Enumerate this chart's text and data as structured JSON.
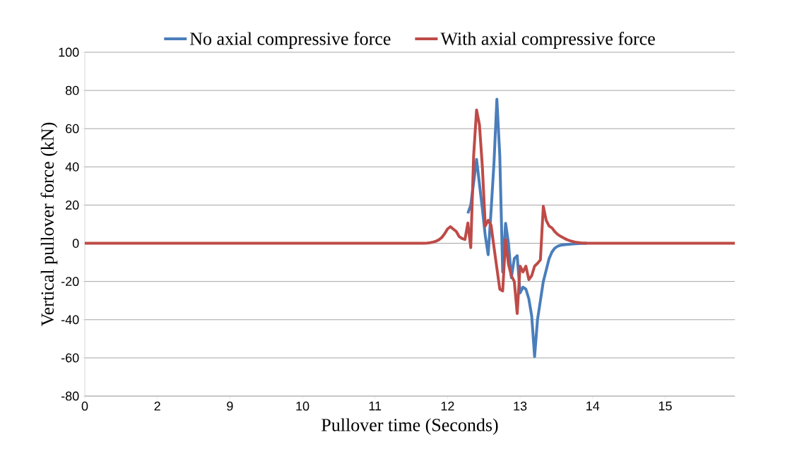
{
  "chart_data": {
    "type": "line",
    "xlabel": "Pullover time (Seconds)",
    "ylabel": "Vertical pullover force (kN)",
    "categories": [
      "0",
      null,
      null,
      null,
      null,
      null,
      null,
      null,
      null,
      null,
      null,
      null,
      null,
      null,
      null,
      null,
      null,
      null,
      null,
      null,
      null,
      null,
      null,
      null,
      null,
      "2",
      null,
      null,
      null,
      null,
      null,
      null,
      null,
      null,
      null,
      null,
      null,
      null,
      null,
      null,
      null,
      null,
      null,
      null,
      null,
      null,
      null,
      null,
      null,
      null,
      "9",
      null,
      null,
      null,
      null,
      null,
      null,
      null,
      null,
      null,
      null,
      null,
      null,
      null,
      null,
      null,
      null,
      null,
      null,
      null,
      null,
      null,
      null,
      null,
      null,
      "10",
      null,
      null,
      null,
      null,
      null,
      null,
      null,
      null,
      null,
      null,
      null,
      null,
      null,
      null,
      null,
      null,
      null,
      null,
      null,
      null,
      null,
      null,
      null,
      null,
      "11",
      null,
      null,
      null,
      null,
      null,
      null,
      null,
      null,
      null,
      null,
      null,
      null,
      null,
      null,
      null,
      null,
      null,
      null,
      null,
      null,
      null,
      null,
      null,
      null,
      "12",
      null,
      null,
      null,
      null,
      null,
      null,
      null,
      null,
      null,
      null,
      null,
      null,
      null,
      null,
      null,
      null,
      null,
      null,
      null,
      null,
      null,
      null,
      null,
      null,
      "13",
      null,
      null,
      null,
      null,
      null,
      null,
      null,
      null,
      null,
      null,
      null,
      null,
      null,
      null,
      null,
      null,
      null,
      null,
      null,
      null,
      null,
      null,
      null,
      null,
      "14",
      null,
      null,
      null,
      null,
      null,
      null,
      null,
      null,
      null,
      null,
      null,
      null,
      null,
      null,
      null,
      null,
      null,
      null,
      null,
      null,
      null,
      null,
      null,
      null,
      "15",
      null,
      null,
      null,
      null,
      null,
      null,
      null,
      null,
      null,
      null,
      null,
      null,
      null,
      null,
      null,
      null,
      null,
      null,
      null,
      null,
      null,
      null,
      null,
      null
    ],
    "ylim": [
      -80,
      100
    ],
    "yticks": [
      -80,
      -60,
      -40,
      -20,
      0,
      20,
      40,
      60,
      80,
      100
    ],
    "grid": "y",
    "legend": "top",
    "marker": "none",
    "line_style": "solid",
    "series": [
      {
        "name": "No axial compressive force",
        "color": "#4a7ebb",
        "values": [
          null,
          null,
          null,
          null,
          null,
          null,
          null,
          null,
          null,
          null,
          null,
          null,
          null,
          null,
          null,
          null,
          null,
          null,
          null,
          null,
          null,
          null,
          null,
          null,
          null,
          null,
          null,
          null,
          null,
          null,
          null,
          null,
          null,
          null,
          null,
          null,
          null,
          null,
          null,
          null,
          null,
          null,
          null,
          null,
          null,
          null,
          null,
          null,
          null,
          null,
          null,
          null,
          null,
          null,
          null,
          null,
          null,
          null,
          null,
          null,
          null,
          null,
          null,
          null,
          null,
          null,
          null,
          null,
          null,
          null,
          null,
          null,
          null,
          null,
          null,
          null,
          null,
          null,
          null,
          null,
          null,
          null,
          null,
          null,
          null,
          null,
          null,
          null,
          null,
          null,
          null,
          null,
          null,
          null,
          null,
          null,
          null,
          null,
          null,
          null,
          null,
          null,
          null,
          null,
          null,
          null,
          null,
          null,
          null,
          null,
          null,
          null,
          null,
          null,
          null,
          null,
          null,
          null,
          null,
          null,
          null,
          null,
          null,
          null,
          null,
          null,
          null,
          null,
          null,
          null,
          null,
          null,
          15.7,
          20,
          31.8,
          43.9,
          31,
          18,
          4,
          -6,
          17,
          42,
          75.4,
          46,
          -15,
          10.5,
          0,
          -18,
          -8,
          -6.5,
          -26,
          -23,
          -24,
          -29,
          -38,
          -59.3,
          -40,
          -30,
          -20,
          -14,
          -8,
          -4.5,
          -2.5,
          -1.5,
          -1,
          -0.8,
          -0.6,
          -0.5,
          -0.4,
          -0.3,
          -0.2,
          -0.1,
          -0.1,
          0,
          null,
          null,
          null,
          null,
          null,
          null,
          null,
          null,
          null,
          null,
          null,
          null,
          null,
          null,
          null,
          null,
          null,
          null,
          null,
          null,
          null,
          null,
          null,
          null,
          null,
          null,
          null,
          null,
          null,
          null,
          null,
          null,
          null,
          null,
          null,
          null,
          null,
          null,
          null,
          null,
          null,
          null,
          null,
          null,
          null,
          null,
          null,
          null,
          null,
          null,
          null
        ]
      },
      {
        "name": "With axial compressive force",
        "color": "#be4b48",
        "values": [
          0,
          0,
          0,
          0,
          0,
          0,
          0,
          0,
          0,
          0,
          0,
          0,
          0,
          0,
          0,
          0,
          0,
          0,
          0,
          0,
          0,
          0,
          0,
          0,
          0,
          0,
          0,
          0,
          0,
          0,
          0,
          0,
          0,
          0,
          0,
          0,
          0,
          0,
          0,
          0,
          0,
          0,
          0,
          0,
          0,
          0,
          0,
          0,
          0,
          0,
          0,
          0,
          0,
          0,
          0,
          0,
          0,
          0,
          0,
          0,
          0,
          0,
          0,
          0,
          0,
          0,
          0,
          0,
          0,
          0,
          0,
          0,
          0,
          0,
          0,
          0,
          0,
          0,
          0,
          0,
          0,
          0,
          0,
          0,
          0,
          0,
          0,
          0,
          0,
          0,
          0,
          0,
          0,
          0,
          0,
          0,
          0,
          0,
          0,
          0,
          0,
          0,
          0,
          0,
          0,
          0,
          0,
          0,
          0,
          0,
          0,
          0,
          0,
          0,
          0,
          0,
          0,
          0,
          0.1,
          0.3,
          0.6,
          1.1,
          1.8,
          3,
          5,
          7.5,
          8.7,
          7.4,
          6.2,
          3.5,
          2.5,
          2,
          10.6,
          -2.3,
          46,
          69.8,
          62,
          40,
          9,
          12,
          9.4,
          -2,
          -13,
          -24,
          -25,
          2,
          -11,
          -17,
          -20,
          -36.8,
          -12,
          -15,
          -12,
          -19,
          -17,
          -12,
          -10.5,
          -8.7,
          19.4,
          12,
          9,
          8,
          6,
          4.6,
          3.6,
          2.8,
          2,
          1.4,
          1,
          0.6,
          0.4,
          0.2,
          0.1,
          0,
          0,
          0,
          0,
          0,
          0,
          0,
          0,
          0,
          0,
          0,
          0,
          0,
          0,
          0,
          0,
          0,
          0,
          0,
          0,
          0,
          0,
          0,
          0,
          0,
          0,
          0,
          0,
          0,
          0,
          0,
          0,
          0,
          0,
          0,
          0,
          0,
          0,
          0,
          0,
          0,
          0,
          0,
          0,
          0,
          0,
          0,
          0,
          0,
          0,
          0,
          0
        ]
      }
    ]
  }
}
